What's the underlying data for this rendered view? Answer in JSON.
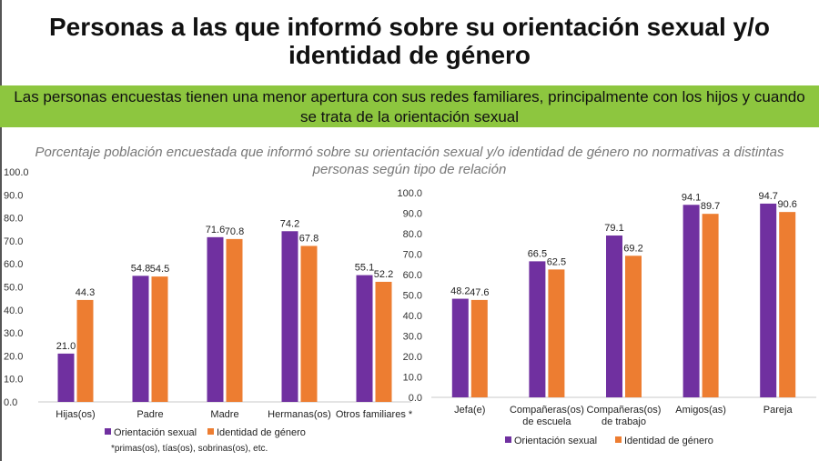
{
  "header": {
    "title_line1": "Personas a las que informó sobre su orientación sexual y/o",
    "title_line2": "identidad de género",
    "banner_line1": "Las personas encuestas tienen una menor apertura con sus redes familiares, principalmente con los hijos y cuando",
    "banner_line2": "se trata de la orientación sexual",
    "subtitle_line1": "Porcentaje población encuestada que informó sobre su orientación sexual y/o identidad de género no normativas a distintas",
    "subtitle_line2": "personas según tipo de relación",
    "note": "*primas(os), tías(os), sobrinas(os), etc."
  },
  "colors": {
    "orientacion": "#7030a0",
    "identidad": "#ed7d31",
    "banner": "#8dc63f"
  },
  "chart_data": [
    {
      "type": "bar",
      "categories": [
        "Hijas(os)",
        "Padre",
        "Madre",
        "Hermanas(os)",
        "Otros familiares *"
      ],
      "series": [
        {
          "name": "Orientación sexual",
          "values": [
            21.0,
            54.8,
            71.6,
            74.2,
            55.1
          ]
        },
        {
          "name": "Identidad de género",
          "values": [
            44.3,
            54.5,
            70.8,
            67.8,
            52.2
          ]
        }
      ],
      "ylim": [
        0,
        100
      ],
      "yticks": [
        "0.0",
        "10.0",
        "20.0",
        "30.0",
        "40.0",
        "50.0",
        "60.0",
        "70.0",
        "80.0",
        "90.0",
        "100.0"
      ],
      "legend": "bottom"
    },
    {
      "type": "bar",
      "categories": [
        [
          "Jefa(e)"
        ],
        [
          "Compañeras(os)",
          "de escuela"
        ],
        [
          "Compañeras(os)",
          "de trabajo"
        ],
        [
          "Amigos(as)"
        ],
        [
          "Pareja"
        ]
      ],
      "series": [
        {
          "name": "Orientación sexual",
          "values": [
            48.2,
            66.5,
            79.1,
            94.1,
            94.7
          ]
        },
        {
          "name": "Identidad de género",
          "values": [
            47.6,
            62.5,
            69.2,
            89.7,
            90.6
          ]
        }
      ],
      "ylim": [
        0,
        100
      ],
      "yticks": [
        "0.0",
        "10.0",
        "20.0",
        "30.0",
        "40.0",
        "50.0",
        "60.0",
        "70.0",
        "80.0",
        "90.0",
        "100.0"
      ],
      "legend": "bottom"
    }
  ]
}
